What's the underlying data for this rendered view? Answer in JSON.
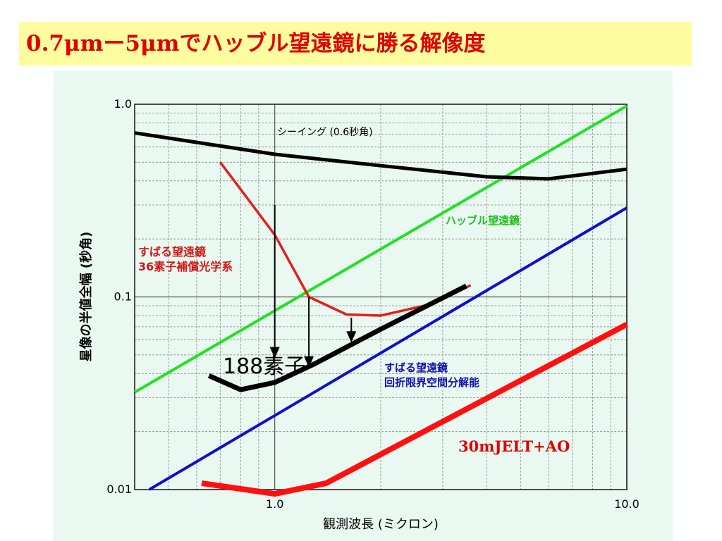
{
  "slide": {
    "title": "0.7μmー5μmでハッブル望遠鏡に勝る解像度"
  },
  "colors": {
    "title_bg": "#fdfda0",
    "title_text": "#e00000",
    "panel_bg": "#e9f8f0",
    "seeing": "#000000",
    "hubble": "#22e022",
    "subaru_ao36": "#e02020",
    "diffraction": "#1010c8",
    "ao188": "#000000",
    "jelt": "#ff1010"
  },
  "chart_data": {
    "type": "line",
    "x_scale": "log",
    "y_scale": "log",
    "xlim": [
      0.4,
      10.0
    ],
    "ylim": [
      0.01,
      1.0
    ],
    "grid": true,
    "xlabel": "観測波長 (ミクロン)",
    "ylabel": "星像の半値全幅 (秒角)",
    "x_ticks": [
      {
        "value": 1.0,
        "label": "1.0"
      },
      {
        "value": 10.0,
        "label": "10.0"
      }
    ],
    "y_ticks": [
      {
        "value": 1.0,
        "label": "1.0"
      },
      {
        "value": 0.1,
        "label": "0.1"
      },
      {
        "value": 0.01,
        "label": "0.01"
      }
    ],
    "series": [
      {
        "key": "seeing",
        "name": "シーイング (0.6秒角)",
        "x": [
          0.4,
          1.0,
          2.0,
          4.0,
          6.0,
          10.0
        ],
        "y": [
          0.71,
          0.55,
          0.48,
          0.42,
          0.41,
          0.46
        ]
      },
      {
        "key": "hubble",
        "name": "ハッブル望遠鏡",
        "x": [
          0.4,
          10.0
        ],
        "y": [
          0.032,
          0.98
        ]
      },
      {
        "key": "diffraction",
        "name": "すばる望遠鏡 回折限界空間分解能",
        "x": [
          0.44,
          10.0
        ],
        "y": [
          0.01,
          0.29
        ]
      },
      {
        "key": "subaru_ao36",
        "name": "すばる望遠鏡 36素子補償光学系",
        "x": [
          0.7,
          1.0,
          1.25,
          1.6,
          2.0,
          2.8,
          3.6
        ],
        "y": [
          0.5,
          0.21,
          0.1,
          0.081,
          0.08,
          0.092,
          0.115
        ]
      },
      {
        "key": "ao188",
        "name": "188素子",
        "x": [
          0.65,
          0.8,
          1.0,
          1.3,
          2.0,
          3.5
        ],
        "y": [
          0.039,
          0.033,
          0.036,
          0.045,
          0.068,
          0.114
        ]
      },
      {
        "key": "jelt",
        "name": "30mJELT+AO",
        "x": [
          0.62,
          1.0,
          1.4,
          10.0
        ],
        "y": [
          0.0108,
          0.0095,
          0.0108,
          0.072
        ]
      }
    ],
    "arrows": [
      {
        "x": 1.0,
        "y_from": 0.3,
        "y_to": 0.048
      },
      {
        "x": 1.25,
        "y_from": 0.1,
        "y_to": 0.043
      },
      {
        "x": 1.65,
        "y_from": 0.078,
        "y_to": 0.058
      }
    ],
    "annotations": {
      "seeing": "シーイング (0.6秒角)",
      "hubble": "ハッブル望遠鏡",
      "subaru_ao36_line1": "すばる望遠鏡",
      "subaru_ao36_line2": "36素子補償光学系",
      "ao188": "188素子",
      "diffraction_line1": "すばる望遠鏡",
      "diffraction_line2": "回折限界空間分解能",
      "jelt": "30mJELT+AO"
    }
  }
}
